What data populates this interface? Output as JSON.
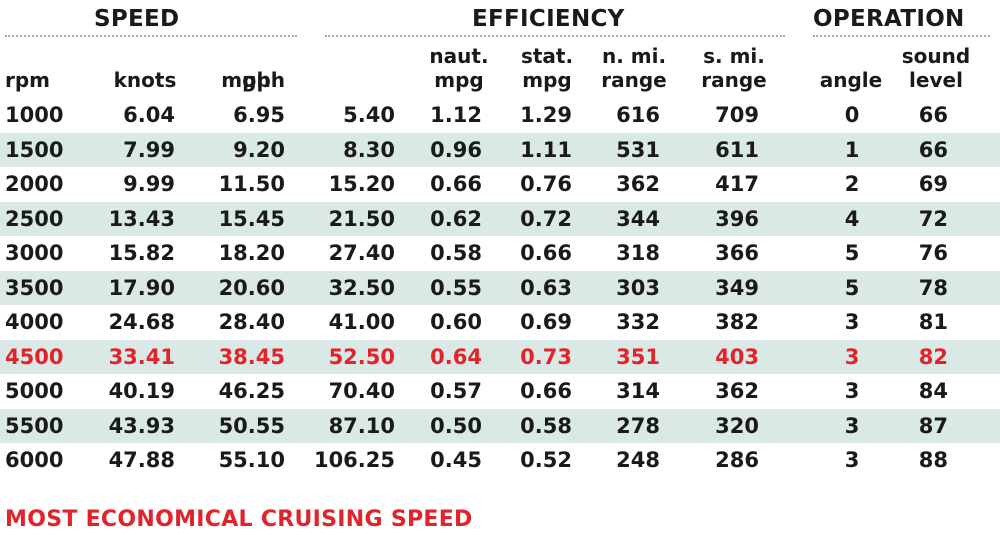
{
  "chart_data": {
    "type": "table",
    "groups": [
      {
        "name": "SPEED",
        "columns": [
          "rpm",
          "knots",
          "mph"
        ]
      },
      {
        "name": "EFFICIENCY",
        "columns": [
          "gph",
          "naut. mpg",
          "stat. mpg",
          "n. mi. range",
          "s. mi. range"
        ]
      },
      {
        "name": "OPERATION",
        "columns": [
          "angle",
          "sound level"
        ]
      }
    ],
    "columns": [
      {
        "lines": [
          "rpm"
        ]
      },
      {
        "lines": [
          "knots"
        ]
      },
      {
        "lines": [
          "mph"
        ]
      },
      {
        "lines": [
          "gph"
        ]
      },
      {
        "lines": [
          "naut.",
          "mpg"
        ]
      },
      {
        "lines": [
          "stat.",
          "mpg"
        ]
      },
      {
        "lines": [
          "n. mi.",
          "range"
        ]
      },
      {
        "lines": [
          "s. mi.",
          "range"
        ]
      },
      {
        "lines": [
          "angle"
        ]
      },
      {
        "lines": [
          "sound",
          "level"
        ]
      }
    ],
    "rows": [
      [
        "1000",
        "6.04",
        "6.95",
        "5.40",
        "1.12",
        "1.29",
        "616",
        "709",
        "0",
        "66"
      ],
      [
        "1500",
        "7.99",
        "9.20",
        "8.30",
        "0.96",
        "1.11",
        "531",
        "611",
        "1",
        "66"
      ],
      [
        "2000",
        "9.99",
        "11.50",
        "15.20",
        "0.66",
        "0.76",
        "362",
        "417",
        "2",
        "69"
      ],
      [
        "2500",
        "13.43",
        "15.45",
        "21.50",
        "0.62",
        "0.72",
        "344",
        "396",
        "4",
        "72"
      ],
      [
        "3000",
        "15.82",
        "18.20",
        "27.40",
        "0.58",
        "0.66",
        "318",
        "366",
        "5",
        "76"
      ],
      [
        "3500",
        "17.90",
        "20.60",
        "32.50",
        "0.55",
        "0.63",
        "303",
        "349",
        "5",
        "78"
      ],
      [
        "4000",
        "24.68",
        "28.40",
        "41.00",
        "0.60",
        "0.69",
        "332",
        "382",
        "3",
        "81"
      ],
      [
        "4500",
        "33.41",
        "38.45",
        "52.50",
        "0.64",
        "0.73",
        "351",
        "403",
        "3",
        "82"
      ],
      [
        "5000",
        "40.19",
        "46.25",
        "70.40",
        "0.57",
        "0.66",
        "314",
        "362",
        "3",
        "84"
      ],
      [
        "5500",
        "43.93",
        "50.55",
        "87.10",
        "0.50",
        "0.58",
        "278",
        "320",
        "3",
        "87"
      ],
      [
        "6000",
        "47.88",
        "55.10",
        "106.25",
        "0.45",
        "0.52",
        "248",
        "286",
        "3",
        "88"
      ]
    ],
    "highlight_row": 7,
    "highlight_color": "#e1232b",
    "stripe_color": "#dbe9e6",
    "footnote": "MOST ECONOMICAL CRUISING SPEED"
  }
}
